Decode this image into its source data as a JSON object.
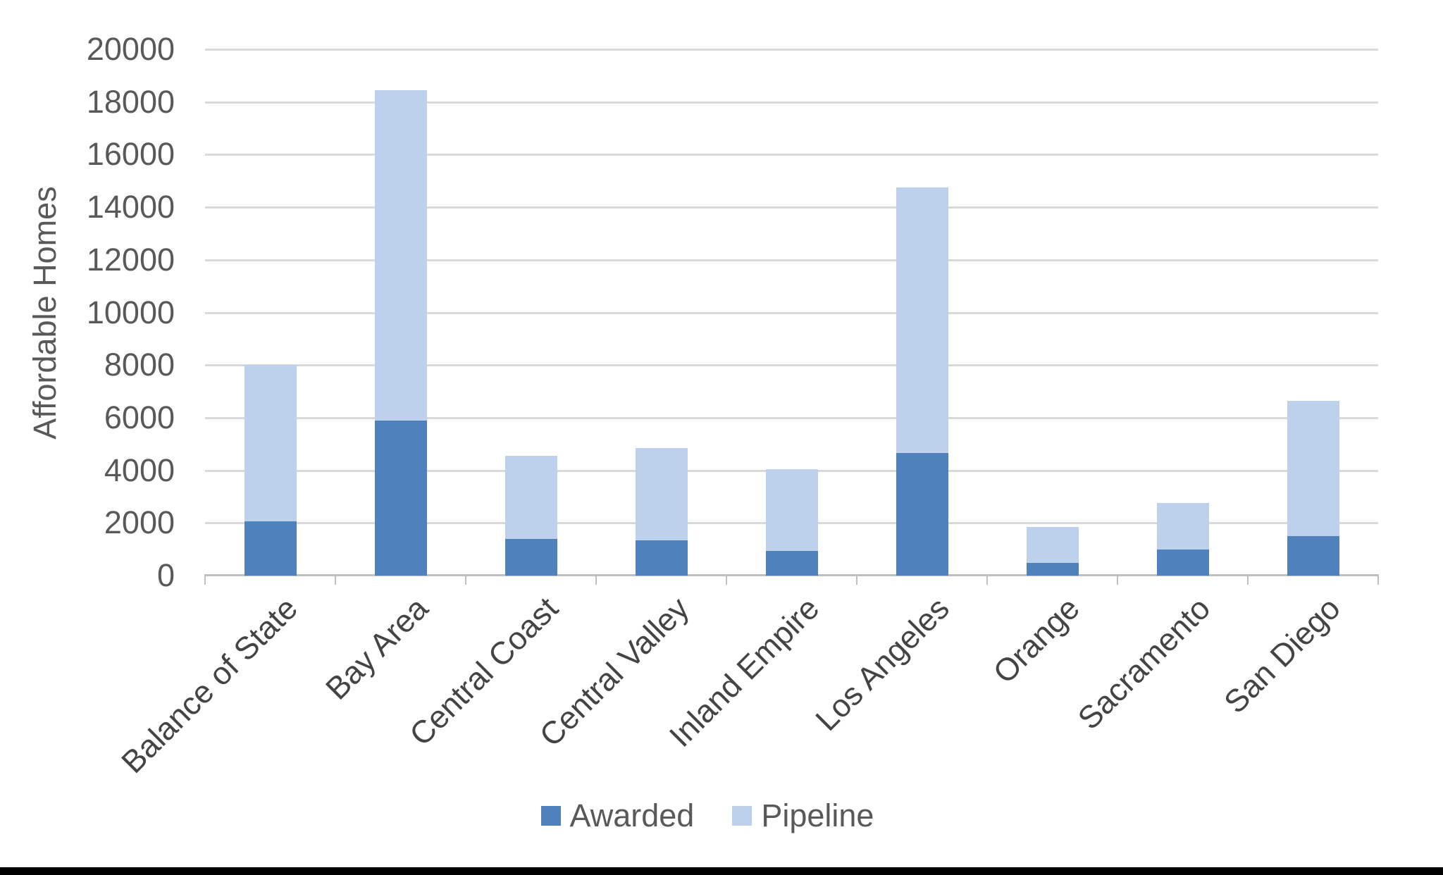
{
  "page": {
    "background": "#FFFFFF",
    "footer_bar_color": "#000000"
  },
  "chart_data": {
    "type": "bar",
    "stacked": true,
    "title": "",
    "xlabel": "",
    "ylabel": "Affordable Homes",
    "ylim": [
      0,
      20000
    ],
    "ytick_step": 2000,
    "grid": "horizontal",
    "legend_position": "bottom-center",
    "categories": [
      "Balance of State",
      "Bay Area",
      "Central Coast",
      "Central Valley",
      "Inland Empire",
      "Los Angeles",
      "Orange",
      "Sacramento",
      "San Diego"
    ],
    "series": [
      {
        "name": "Awarded",
        "color": "#4F81BD",
        "values": [
          2050,
          5900,
          1400,
          1350,
          930,
          4650,
          480,
          1000,
          1500
        ]
      },
      {
        "name": "Pipeline",
        "color": "#BDD1EC",
        "values": [
          5950,
          12550,
          3150,
          3500,
          3120,
          10100,
          1370,
          1750,
          5150
        ]
      }
    ],
    "stack_totals": [
      8000,
      18450,
      4550,
      4850,
      4050,
      14750,
      1850,
      2750,
      6650
    ],
    "colors": {
      "axis_text": "#595959",
      "category_text": "#444444",
      "gridline": "#D9D9D9",
      "axis_line": "#BFBFBF"
    }
  }
}
